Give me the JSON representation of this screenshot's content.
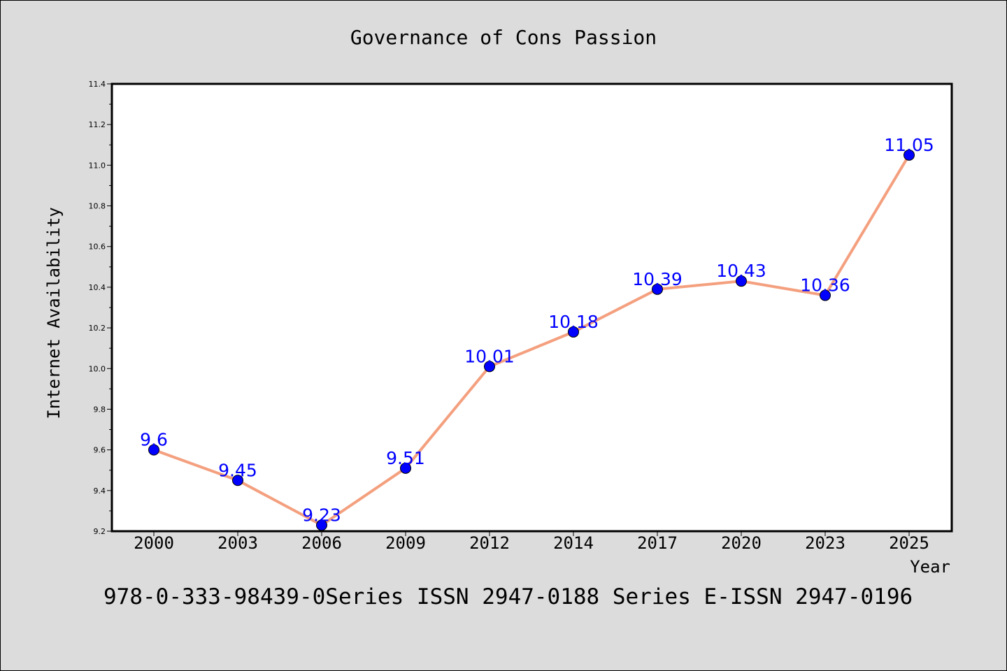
{
  "chart_data": {
    "type": "line",
    "title": "Governance of Cons Passion",
    "xlabel": "Year",
    "ylabel": "Internet Availability",
    "categories": [
      "2000",
      "2003",
      "2006",
      "2009",
      "2012",
      "2014",
      "2017",
      "2020",
      "2023",
      "2025"
    ],
    "series": [
      {
        "values": [
          9.6,
          9.45,
          9.23,
          9.51,
          10.01,
          10.18,
          10.39,
          10.43,
          10.36,
          11.05
        ],
        "line_color": "#f4a07f",
        "marker_color": "#0000ff"
      }
    ],
    "ylim": [
      9.2,
      11.4
    ],
    "yticks": [
      "9.2",
      "9.4",
      "9.6",
      "9.8",
      "10.0",
      "10.2",
      "10.4",
      "10.6",
      "10.8",
      "11.0",
      "11.2",
      "11.4"
    ],
    "data_labels": [
      "9.6",
      "9.45",
      "9.23",
      "9.51",
      "10.01",
      "10.18",
      "10.39",
      "10.43",
      "10.36",
      "11.05"
    ],
    "grid": false,
    "legend": "none"
  },
  "footer": "978-0-333-98439-0Series ISSN 2947-0188 Series E-ISSN 2947-0196",
  "colors": {
    "background": "#dcdcdc",
    "plot_background": "#ffffff",
    "data_label": "#0000ff"
  }
}
